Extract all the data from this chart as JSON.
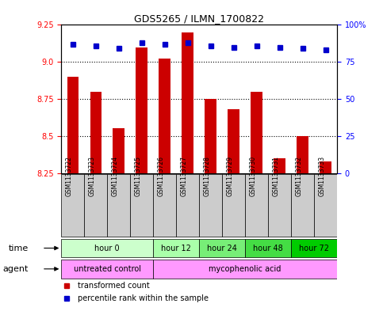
{
  "title": "GDS5265 / ILMN_1700822",
  "samples": [
    "GSM1133722",
    "GSM1133723",
    "GSM1133724",
    "GSM1133725",
    "GSM1133726",
    "GSM1133727",
    "GSM1133728",
    "GSM1133729",
    "GSM1133730",
    "GSM1133731",
    "GSM1133732",
    "GSM1133733"
  ],
  "bar_values": [
    8.9,
    8.8,
    8.55,
    9.1,
    9.02,
    9.2,
    8.75,
    8.68,
    8.8,
    8.35,
    8.5,
    8.33
  ],
  "percentile_values": [
    87,
    86,
    84,
    88,
    87,
    88,
    86,
    85,
    86,
    85,
    84,
    83
  ],
  "y_min": 8.25,
  "y_max": 9.25,
  "y_ticks": [
    8.25,
    8.5,
    8.75,
    9.0,
    9.25
  ],
  "right_y_ticks": [
    0,
    25,
    50,
    75,
    100
  ],
  "bar_color": "#cc0000",
  "percentile_color": "#0000cc",
  "dotted_line_values": [
    8.5,
    8.75,
    9.0
  ],
  "time_groups": [
    {
      "label": "hour 0",
      "start": 0,
      "end": 3,
      "color": "#ccffcc"
    },
    {
      "label": "hour 12",
      "start": 4,
      "end": 5,
      "color": "#aaffaa"
    },
    {
      "label": "hour 24",
      "start": 6,
      "end": 7,
      "color": "#77ee77"
    },
    {
      "label": "hour 48",
      "start": 8,
      "end": 9,
      "color": "#44dd44"
    },
    {
      "label": "hour 72",
      "start": 10,
      "end": 11,
      "color": "#00cc00"
    }
  ],
  "agent_untreated": {
    "label": "untreated control",
    "start": 0,
    "end": 3,
    "color": "#ff99ff"
  },
  "agent_myco": {
    "label": "mycophenolic acid",
    "start": 4,
    "end": 11,
    "color": "#ff99ff"
  },
  "legend_bar_label": "transformed count",
  "legend_dot_label": "percentile rank within the sample",
  "time_label": "time",
  "agent_label": "agent",
  "bar_width": 0.5,
  "sample_box_color": "#cccccc",
  "title_fontsize": 9
}
